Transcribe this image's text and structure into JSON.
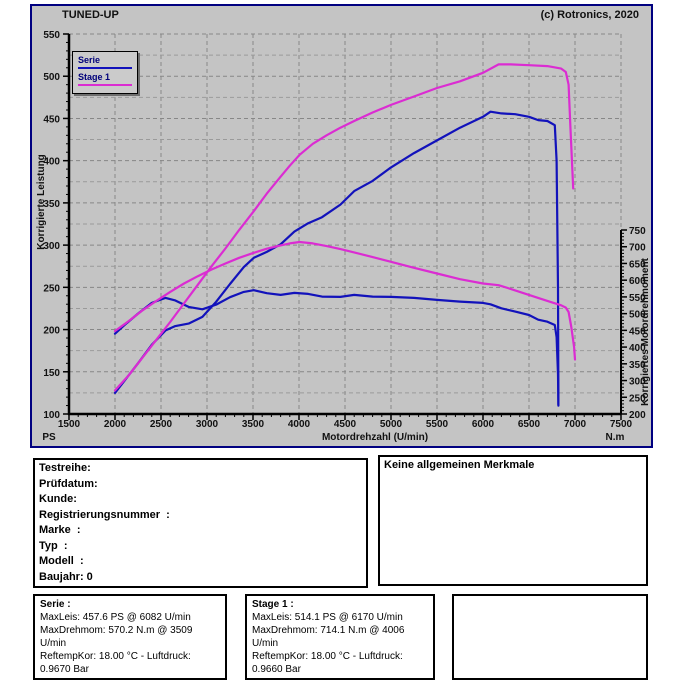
{
  "header": {
    "title": "TUNED-UP",
    "copyright": "(c) Rotronics, 2020"
  },
  "legend": {
    "items": [
      {
        "label": "Serie",
        "color": "#1212bb"
      },
      {
        "label": "Stage 1",
        "color": "#db2cd2"
      }
    ]
  },
  "chart_data": {
    "type": "line",
    "title": "TUNED-UP",
    "x_axis": {
      "label": "Motordrehzahl (U/min)",
      "min": 1500,
      "max": 7500,
      "major_step": 500,
      "minor_step": 100
    },
    "left_axis": {
      "label": "Korrigierte Leistung",
      "unit": "PS",
      "min": 100,
      "max": 550,
      "major_step": 50,
      "minor_step": 10
    },
    "right_axis": {
      "label": "Korrigiertes Motordrehmoment",
      "unit": "N.m",
      "min": 200,
      "max": 750,
      "major_step": 50,
      "minor_step": 10
    },
    "grid": {
      "vertical_step": 500,
      "horizontal_step": 25,
      "style": "dashed"
    },
    "series": [
      {
        "name": "Serie Leistung (PS)",
        "axis": "left",
        "color": "#1212bb",
        "points": [
          [
            2000,
            125
          ],
          [
            2100,
            139
          ],
          [
            2250,
            160
          ],
          [
            2400,
            182
          ],
          [
            2550,
            199
          ],
          [
            2650,
            204
          ],
          [
            2800,
            207
          ],
          [
            2950,
            215
          ],
          [
            3100,
            233
          ],
          [
            3250,
            254
          ],
          [
            3400,
            274
          ],
          [
            3509,
            285
          ],
          [
            3650,
            292
          ],
          [
            3800,
            301
          ],
          [
            3950,
            316
          ],
          [
            4100,
            326
          ],
          [
            4250,
            333
          ],
          [
            4450,
            348
          ],
          [
            4600,
            364
          ],
          [
            4800,
            376
          ],
          [
            5000,
            392
          ],
          [
            5250,
            409
          ],
          [
            5500,
            424
          ],
          [
            5750,
            439
          ],
          [
            6000,
            452
          ],
          [
            6082,
            458
          ],
          [
            6200,
            456
          ],
          [
            6350,
            455
          ],
          [
            6500,
            452
          ],
          [
            6600,
            448
          ],
          [
            6700,
            447
          ],
          [
            6780,
            442
          ],
          [
            6800,
            400
          ],
          [
            6815,
            250
          ],
          [
            6820,
            110
          ]
        ]
      },
      {
        "name": "Serie Drehmoment (N.m)",
        "axis": "right",
        "color": "#1212bb",
        "points": [
          [
            2000,
            440
          ],
          [
            2100,
            465
          ],
          [
            2250,
            500
          ],
          [
            2400,
            532
          ],
          [
            2550,
            547
          ],
          [
            2650,
            540
          ],
          [
            2800,
            520
          ],
          [
            2950,
            513
          ],
          [
            3100,
            527
          ],
          [
            3250,
            549
          ],
          [
            3400,
            565
          ],
          [
            3509,
            570
          ],
          [
            3650,
            561
          ],
          [
            3800,
            556
          ],
          [
            3950,
            562
          ],
          [
            4100,
            559
          ],
          [
            4250,
            551
          ],
          [
            4450,
            550
          ],
          [
            4600,
            556
          ],
          [
            4800,
            551
          ],
          [
            5000,
            550
          ],
          [
            5250,
            547
          ],
          [
            5500,
            541
          ],
          [
            5750,
            536
          ],
          [
            6000,
            532
          ],
          [
            6082,
            528
          ],
          [
            6200,
            516
          ],
          [
            6350,
            506
          ],
          [
            6500,
            496
          ],
          [
            6600,
            482
          ],
          [
            6700,
            476
          ],
          [
            6780,
            466
          ],
          [
            6800,
            430
          ],
          [
            6815,
            320
          ],
          [
            6820,
            228
          ]
        ]
      },
      {
        "name": "Stage 1 Leistung (PS)",
        "axis": "left",
        "color": "#db2cd2",
        "points": [
          [
            2000,
            128
          ],
          [
            2150,
            146
          ],
          [
            2300,
            167
          ],
          [
            2450,
            188
          ],
          [
            2600,
            209
          ],
          [
            2750,
            231
          ],
          [
            2900,
            253
          ],
          [
            3050,
            275
          ],
          [
            3200,
            296
          ],
          [
            3350,
            318
          ],
          [
            3500,
            339
          ],
          [
            3650,
            361
          ],
          [
            3800,
            381
          ],
          [
            3900,
            394
          ],
          [
            4006,
            407
          ],
          [
            4150,
            420
          ],
          [
            4300,
            430
          ],
          [
            4450,
            439
          ],
          [
            4600,
            447
          ],
          [
            4800,
            457
          ],
          [
            5000,
            466
          ],
          [
            5250,
            476
          ],
          [
            5500,
            486
          ],
          [
            5750,
            494
          ],
          [
            6000,
            504
          ],
          [
            6170,
            514
          ],
          [
            6300,
            514
          ],
          [
            6500,
            513
          ],
          [
            6700,
            512
          ],
          [
            6850,
            509
          ],
          [
            6900,
            505
          ],
          [
            6930,
            490
          ],
          [
            6950,
            440
          ],
          [
            6980,
            367
          ]
        ]
      },
      {
        "name": "Stage 1 Drehmoment (N.m)",
        "axis": "right",
        "color": "#db2cd2",
        "points": [
          [
            2000,
            448
          ],
          [
            2150,
            478
          ],
          [
            2300,
            510
          ],
          [
            2450,
            538
          ],
          [
            2600,
            565
          ],
          [
            2750,
            590
          ],
          [
            2900,
            612
          ],
          [
            3050,
            632
          ],
          [
            3200,
            650
          ],
          [
            3350,
            667
          ],
          [
            3500,
            681
          ],
          [
            3650,
            694
          ],
          [
            3800,
            704
          ],
          [
            3900,
            710
          ],
          [
            4006,
            714
          ],
          [
            4150,
            710
          ],
          [
            4300,
            702
          ],
          [
            4450,
            693
          ],
          [
            4600,
            683
          ],
          [
            4800,
            669
          ],
          [
            5000,
            655
          ],
          [
            5250,
            637
          ],
          [
            5500,
            620
          ],
          [
            5750,
            603
          ],
          [
            6000,
            590
          ],
          [
            6170,
            585
          ],
          [
            6300,
            574
          ],
          [
            6500,
            556
          ],
          [
            6700,
            538
          ],
          [
            6850,
            525
          ],
          [
            6900,
            518
          ],
          [
            6930,
            505
          ],
          [
            6960,
            460
          ],
          [
            6990,
            400
          ],
          [
            7000,
            363
          ]
        ]
      }
    ]
  },
  "info_box": {
    "lines": [
      "Testreihe:",
      "Prüfdatum:",
      "Kunde:",
      "Registrierungsnummer  :",
      "Marke  :",
      "Typ  :",
      "Modell  :",
      "Baujahr: 0"
    ]
  },
  "merkmale_box": {
    "text": "Keine allgemeinen Merkmale"
  },
  "result_boxes": [
    {
      "title": "Serie :",
      "lines": [
        "MaxLeis: 457.6 PS @ 6082 U/min",
        "MaxDrehmom: 570.2 N.m @ 3509",
        "U/min",
        "ReftempKor: 18.00 °C - Luftdruck:",
        "0.9670 Bar"
      ]
    },
    {
      "title": "Stage 1 :",
      "lines": [
        "MaxLeis: 514.1 PS @ 6170 U/min",
        "MaxDrehmom: 714.1 N.m @ 4006",
        "U/min",
        "ReftempKor: 18.00 °C - Luftdruck:",
        "0.9660 Bar"
      ]
    }
  ],
  "colors": {
    "panel_bg": "#c4c4c4",
    "panel_border": "#000080",
    "grid_major": "#878787",
    "grid_minor": "#9a9a9a",
    "axis": "#000000",
    "serie": "#1212bb",
    "stage1": "#db2cd2"
  }
}
